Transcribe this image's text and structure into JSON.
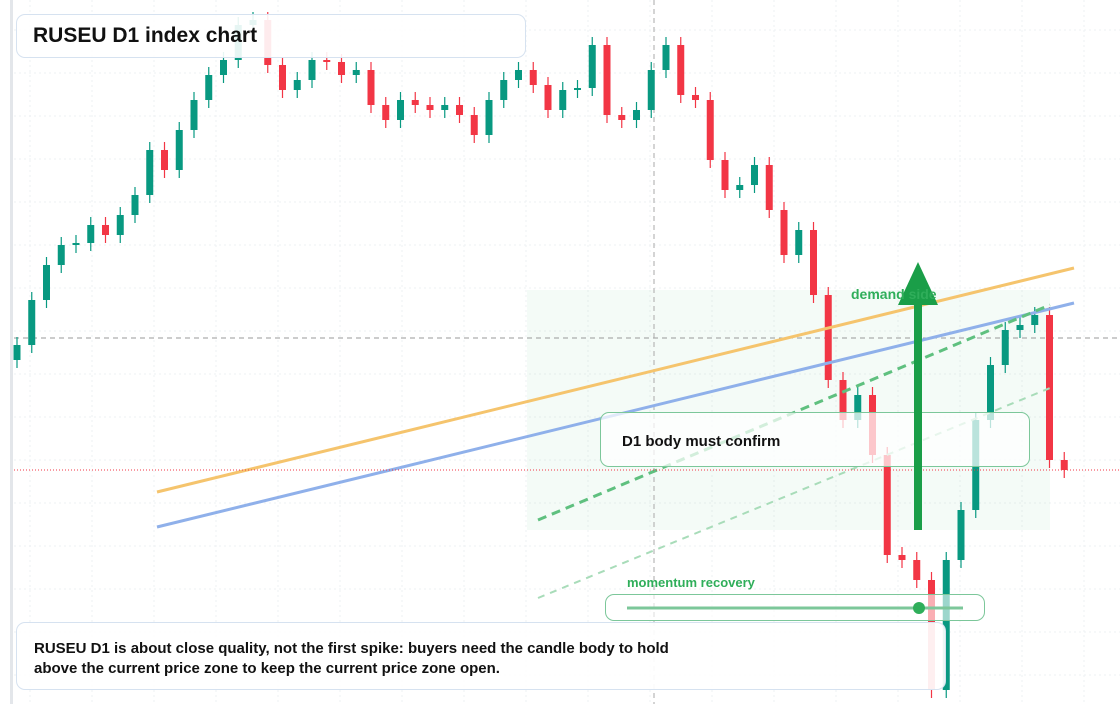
{
  "chart_data": {
    "type": "candlestick",
    "title": "RUSEU D1 index chart",
    "open": [
      1144,
      1159,
      1204,
      1239,
      1259,
      1261,
      1279,
      1269,
      1289,
      1309,
      1354,
      1334,
      1374,
      1404,
      1429,
      1444,
      1479,
      1484,
      1439,
      1414,
      1424,
      1444,
      1442,
      1429,
      1434,
      1399,
      1384,
      1404,
      1399,
      1394,
      1399,
      1389,
      1369,
      1404,
      1424,
      1434,
      1419,
      1394,
      1414,
      1416,
      1459,
      1389,
      1384,
      1394,
      1434,
      1459,
      1409,
      1404,
      1344,
      1314,
      1319,
      1339,
      1294,
      1249,
      1274,
      1209,
      1124,
      1084,
      1109,
      1049,
      949,
      944,
      924,
      814,
      944,
      994,
      1084,
      1139,
      1174,
      1179,
      1189,
      1044
    ],
    "high": [
      1167,
      1212,
      1247,
      1267,
      1269,
      1287,
      1287,
      1297,
      1317,
      1362,
      1362,
      1382,
      1412,
      1437,
      1452,
      1487,
      1492,
      1492,
      1447,
      1432,
      1452,
      1452,
      1450,
      1442,
      1442,
      1407,
      1412,
      1412,
      1407,
      1407,
      1407,
      1397,
      1412,
      1432,
      1442,
      1442,
      1427,
      1422,
      1424,
      1467,
      1467,
      1397,
      1402,
      1442,
      1467,
      1467,
      1417,
      1412,
      1352,
      1327,
      1347,
      1347,
      1302,
      1282,
      1282,
      1217,
      1132,
      1117,
      1117,
      1057,
      957,
      952,
      932,
      952,
      1002,
      1092,
      1147,
      1182,
      1187,
      1197,
      1197,
      1052
    ],
    "low": [
      1136,
      1151,
      1196,
      1231,
      1251,
      1253,
      1261,
      1261,
      1281,
      1301,
      1326,
      1326,
      1366,
      1396,
      1421,
      1436,
      1471,
      1431,
      1406,
      1406,
      1416,
      1434,
      1421,
      1421,
      1391,
      1376,
      1376,
      1391,
      1386,
      1386,
      1381,
      1361,
      1361,
      1396,
      1416,
      1411,
      1386,
      1386,
      1406,
      1408,
      1381,
      1376,
      1376,
      1386,
      1426,
      1401,
      1396,
      1336,
      1306,
      1306,
      1311,
      1286,
      1241,
      1241,
      1201,
      1116,
      1076,
      1076,
      1041,
      941,
      936,
      916,
      806,
      806,
      936,
      986,
      1076,
      1131,
      1166,
      1171,
      1036,
      1026
    ],
    "close": [
      1159,
      1204,
      1239,
      1259,
      1261,
      1279,
      1269,
      1289,
      1309,
      1354,
      1334,
      1374,
      1404,
      1429,
      1444,
      1479,
      1484,
      1439,
      1414,
      1424,
      1444,
      1442,
      1429,
      1434,
      1399,
      1384,
      1404,
      1399,
      1394,
      1399,
      1389,
      1369,
      1404,
      1424,
      1434,
      1419,
      1394,
      1414,
      1416,
      1459,
      1389,
      1384,
      1394,
      1434,
      1459,
      1409,
      1404,
      1344,
      1314,
      1319,
      1339,
      1294,
      1249,
      1274,
      1209,
      1124,
      1084,
      1109,
      1049,
      949,
      944,
      924,
      814,
      944,
      994,
      1084,
      1139,
      1174,
      1179,
      1189,
      1044,
      1034
    ],
    "ylim": [
      800,
      1504
    ],
    "up_color": "#089981",
    "down_color": "#f23645",
    "annotations": {
      "zone": "demand side",
      "confirm": "D1 body must confirm",
      "momentum": "momentum recovery"
    },
    "caption": [
      "RUSEU D1 is about close quality, not the first spike: buyers need the candle body to hold",
      "above the current price zone to keep the current price zone open."
    ]
  }
}
